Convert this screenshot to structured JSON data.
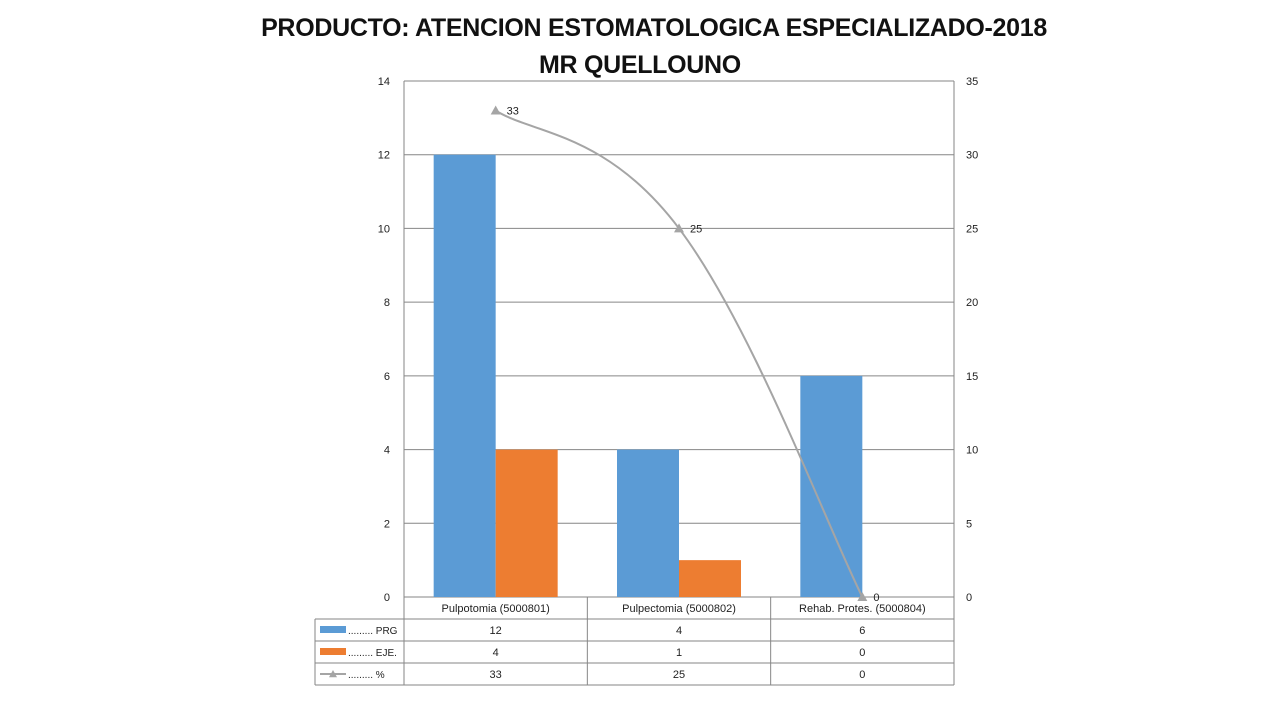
{
  "title_lines": [
    "PRODUCTO: ATENCION ESTOMATOLOGICA ESPECIALIZADO-2018",
    "MR QUELLOUNO"
  ],
  "chart_data": {
    "type": "bar",
    "categories": [
      "Pulpotomia  (5000801)",
      "Pulpectomia (5000802)",
      "Rehab. Protes. (5000804)"
    ],
    "series": [
      {
        "name": "......... PRG",
        "type": "bar",
        "axis": "left",
        "values": [
          12,
          4,
          6
        ],
        "color": "#5b9bd5"
      },
      {
        "name": "......... EJE.",
        "type": "bar",
        "axis": "left",
        "values": [
          4,
          1,
          0
        ],
        "color": "#ed7d31"
      },
      {
        "name": "......... %",
        "type": "line",
        "axis": "right",
        "values": [
          33,
          25,
          0
        ],
        "color": "#a5a5a5",
        "marker": "triangle",
        "data_labels": [
          "33",
          "25",
          "0"
        ]
      }
    ],
    "left_axis": {
      "min": 0,
      "max": 14,
      "step": 2,
      "ticks": [
        "0",
        "2",
        "4",
        "6",
        "8",
        "10",
        "12",
        "14"
      ]
    },
    "right_axis": {
      "min": 0,
      "max": 35,
      "step": 5,
      "ticks": [
        "0",
        "5",
        "10",
        "15",
        "20",
        "25",
        "30",
        "35"
      ]
    },
    "data_table": {
      "rows": [
        {
          "label": "......... PRG",
          "values": [
            "12",
            "4",
            "6"
          ]
        },
        {
          "label": "......... EJE.",
          "values": [
            "4",
            "1",
            "0"
          ]
        },
        {
          "label": "......... %",
          "values": [
            "33",
            "25",
            "0"
          ]
        }
      ]
    },
    "grid": true,
    "gridline_color": "#868686",
    "title": "PRODUCTO: ATENCION ESTOMATOLOGICA ESPECIALIZADO-2018 MR QUELLOUNO",
    "xlabel": "",
    "ylabel": ""
  }
}
